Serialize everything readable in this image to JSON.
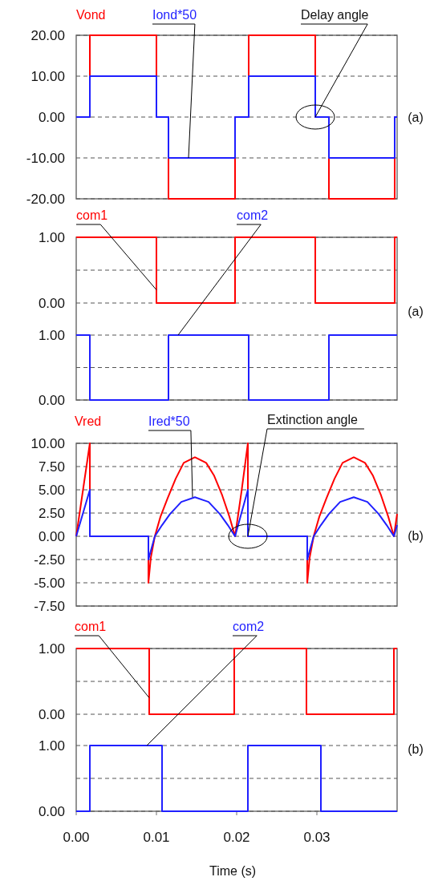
{
  "chart_data": [
    {
      "type": "step",
      "xlim": [
        0,
        0.04
      ],
      "ylim": [
        -20,
        20
      ],
      "yticks": [
        {
          "value": -20,
          "label": "-20.00"
        },
        {
          "value": -10,
          "label": "-10.00"
        },
        {
          "value": 0,
          "label": "0.00"
        },
        {
          "value": 10,
          "label": "10.00"
        },
        {
          "value": 20,
          "label": "20.00"
        }
      ],
      "grid": "y",
      "tick_labels": "y",
      "x": [
        0,
        0.0017,
        0.01,
        0.0115,
        0.0198,
        0.0215,
        0.0298,
        0.0315,
        0.0397,
        0.04
      ],
      "series": [
        {
          "name": "Vond",
          "color": "#ff0000",
          "values": [
            0,
            20,
            0,
            -20,
            0,
            20,
            0,
            -20,
            0,
            0
          ]
        },
        {
          "name": "Iond*50",
          "color": "#1f1fff",
          "values": [
            0,
            10,
            0,
            -10,
            0,
            10,
            0,
            -10,
            0,
            0
          ]
        }
      ],
      "annotations": [
        {
          "text": "Delay angle",
          "x": 0.0298,
          "y": 0
        },
        "(a)"
      ]
    },
    {
      "type": "step",
      "xlim": [
        0,
        0.04
      ],
      "ylim": [
        0,
        1
      ],
      "yticks": [
        {
          "value": 0,
          "label": "0.00"
        },
        {
          "value": 0.5,
          "label": null
        },
        {
          "value": 1,
          "label": "1.00"
        }
      ],
      "grid": "y",
      "tick_labels": "y",
      "x": [
        0,
        0.01,
        0.0198,
        0.0298,
        0.0397,
        0.04
      ],
      "series": [
        {
          "name": "com1",
          "color": "#ff0000",
          "values": [
            1,
            0,
            1,
            0,
            1,
            1
          ]
        }
      ],
      "annotations": [
        "(a)"
      ]
    },
    {
      "type": "step",
      "xlim": [
        0,
        0.04
      ],
      "ylim": [
        0,
        1
      ],
      "yticks": [
        {
          "value": 0,
          "label": "0.00"
        },
        {
          "value": 0.5,
          "label": null
        },
        {
          "value": 1,
          "label": "1.00"
        }
      ],
      "grid": "y",
      "tick_labels": "y",
      "x": [
        0,
        0.0017,
        0.0115,
        0.0215,
        0.0315,
        0.04
      ],
      "series": [
        {
          "name": "com2",
          "color": "#1f1fff",
          "values": [
            1,
            0,
            1,
            0,
            1,
            1
          ]
        }
      ]
    },
    {
      "type": "line",
      "xlim": [
        0,
        0.04
      ],
      "ylim": [
        -7.5,
        10
      ],
      "yticks": [
        {
          "value": -7.5,
          "label": "-7.50"
        },
        {
          "value": -5,
          "label": "-5.00"
        },
        {
          "value": -2.5,
          "label": "-2.50"
        },
        {
          "value": 0,
          "label": "0.00"
        },
        {
          "value": 2.5,
          "label": "2.50"
        },
        {
          "value": 5,
          "label": "5.00"
        },
        {
          "value": 7.5,
          "label": "7.50"
        },
        {
          "value": 10,
          "label": "10.00"
        }
      ],
      "grid": "y",
      "tick_labels": "y",
      "series": [
        {
          "name": "Vred",
          "color": "#ff0000",
          "x": [
            0,
            0.0017,
            0.0017,
            0.009,
            0.009,
            0.0093,
            0.0098,
            0.0105,
            0.0114,
            0.0124,
            0.0134,
            0.0148,
            0.0162,
            0.0172,
            0.0182,
            0.0191,
            0.0198,
            0.0206,
            0.0214,
            0.0214,
            0.0288,
            0.0288,
            0.0291,
            0.0296,
            0.0303,
            0.0312,
            0.0322,
            0.0332,
            0.0346,
            0.036,
            0.037,
            0.038,
            0.0389,
            0.0396,
            0.04
          ],
          "values": [
            0,
            10,
            0,
            0,
            -5,
            -2.3,
            0,
            2.1,
            4.1,
            6.2,
            7.9,
            8.5,
            7.9,
            6.5,
            4.4,
            2.1,
            0,
            4.8,
            10,
            0,
            0,
            -5,
            -2.3,
            0,
            2.1,
            4.1,
            6.2,
            7.9,
            8.5,
            7.9,
            6.5,
            4.4,
            2.1,
            0,
            2.4
          ]
        },
        {
          "name": "Ired*50",
          "color": "#1f1fff",
          "x": [
            0,
            0.0017,
            0.0017,
            0.009,
            0.009,
            0.0098,
            0.0107,
            0.0117,
            0.0131,
            0.0148,
            0.0165,
            0.0179,
            0.0189,
            0.0198,
            0.0214,
            0.0214,
            0.0288,
            0.0288,
            0.0296,
            0.0305,
            0.0315,
            0.0329,
            0.0346,
            0.0363,
            0.0377,
            0.0387,
            0.0396,
            0.04
          ],
          "values": [
            0,
            5,
            0,
            0,
            -2.5,
            0,
            1.2,
            2.4,
            3.7,
            4.2,
            3.7,
            2.4,
            1.2,
            0,
            5,
            0,
            0,
            -2.5,
            0,
            1.2,
            2.4,
            3.7,
            4.2,
            3.7,
            2.4,
            1.2,
            0,
            1.2
          ]
        }
      ],
      "annotations": [
        {
          "text": "Extinction angle",
          "x": 0.0214,
          "y": 0
        },
        "(b)"
      ]
    },
    {
      "type": "step",
      "xlim": [
        0,
        0.04
      ],
      "ylim": [
        0,
        1
      ],
      "yticks": [
        {
          "value": 0,
          "label": "0.00"
        },
        {
          "value": 0.5,
          "label": null
        },
        {
          "value": 1,
          "label": "1.00"
        }
      ],
      "grid": "y",
      "tick_labels": "y",
      "x": [
        0,
        0.0091,
        0.0197,
        0.0287,
        0.0396,
        0.04
      ],
      "series": [
        {
          "name": "com1",
          "color": "#ff0000",
          "values": [
            1,
            0,
            1,
            0,
            1,
            1
          ]
        }
      ],
      "annotations": [
        "(b)"
      ]
    },
    {
      "type": "step",
      "xlim": [
        0,
        0.04
      ],
      "ylim": [
        0,
        1
      ],
      "yticks": [
        {
          "value": 0,
          "label": "0.00"
        },
        {
          "value": 0.5,
          "label": null
        },
        {
          "value": 1,
          "label": "1.00"
        }
      ],
      "grid": "y",
      "x": [
        0,
        0.0017,
        0.0107,
        0.0214,
        0.0305,
        0.04
      ],
      "xticks": [
        {
          "value": 0,
          "label": "0.00"
        },
        {
          "value": 0.01,
          "label": "0.01"
        },
        {
          "value": 0.02,
          "label": "0.02"
        },
        {
          "value": 0.03,
          "label": "0.03"
        }
      ],
      "xlabel": "Time (s)",
      "series": [
        {
          "name": "com2",
          "color": "#1f1fff",
          "values": [
            0,
            1,
            0,
            1,
            0,
            0
          ]
        }
      ]
    }
  ]
}
